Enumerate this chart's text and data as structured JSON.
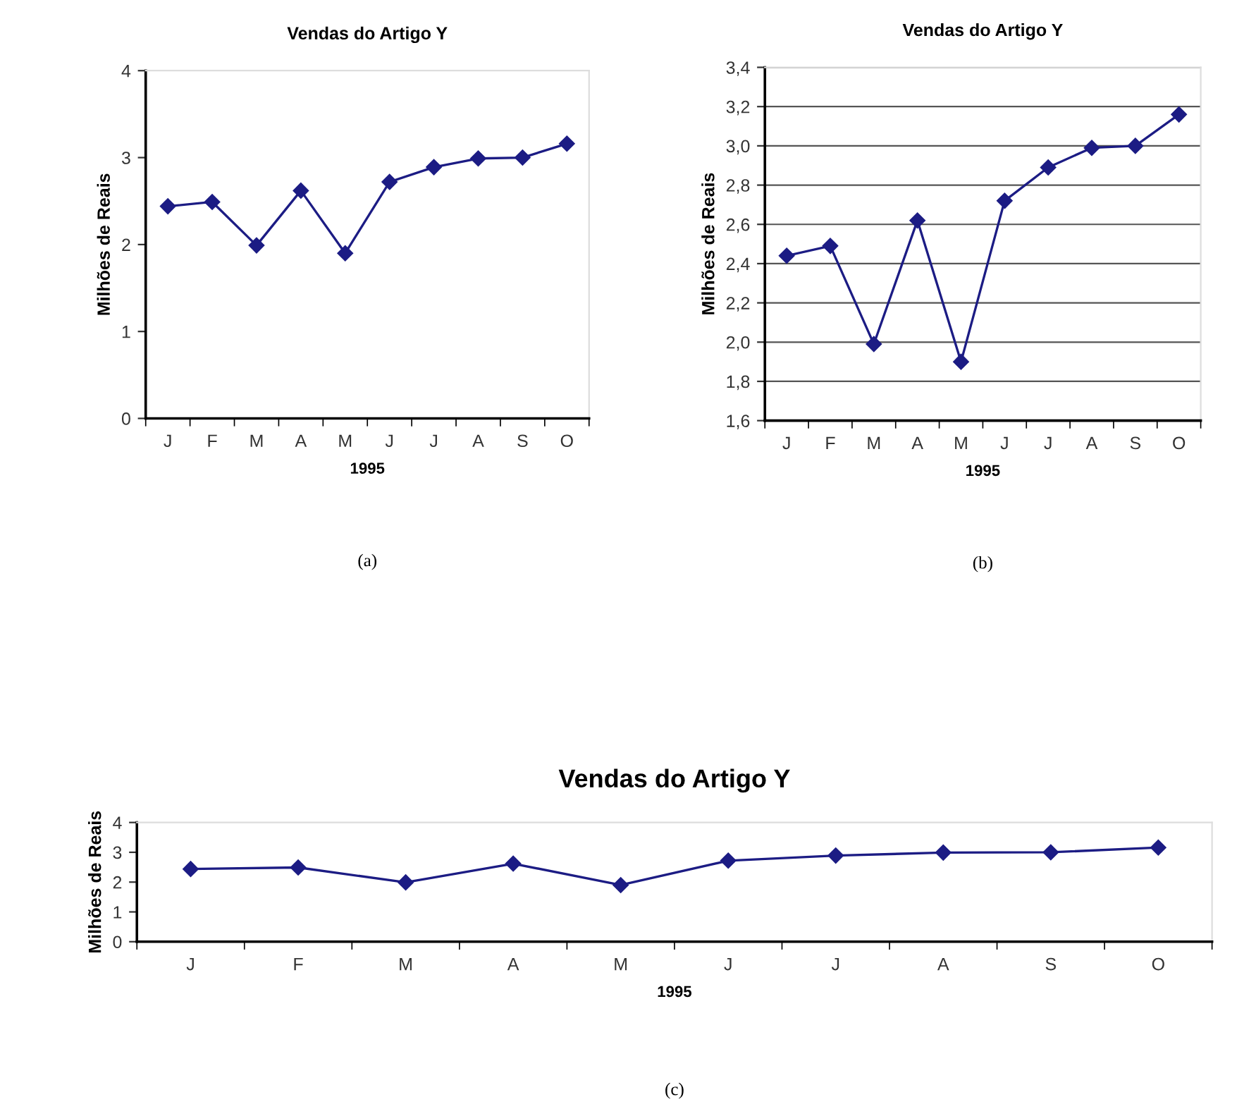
{
  "chart_data": [
    {
      "type": "line",
      "title": "Vendas do Artigo Y",
      "xlabel": "1995",
      "ylabel": "Milhões de Reais",
      "categories": [
        "J",
        "F",
        "M",
        "A",
        "M",
        "J",
        "J",
        "A",
        "S",
        "O"
      ],
      "series": [
        {
          "color": "#1c1c84",
          "values": [
            2.44,
            2.49,
            1.99,
            2.62,
            1.9,
            2.72,
            2.89,
            2.99,
            3.0,
            3.16
          ]
        }
      ],
      "ylim": [
        0,
        4
      ],
      "yticks": [
        0,
        1,
        2,
        3,
        4
      ],
      "grid": false,
      "marker": "diamond",
      "line_style": "solid",
      "annotations": [
        "(a)"
      ]
    },
    {
      "type": "line",
      "title": "Vendas do Artigo Y",
      "xlabel": "1995",
      "ylabel": "Milhões de Reais",
      "categories": [
        "J",
        "F",
        "M",
        "A",
        "M",
        "J",
        "J",
        "A",
        "S",
        "O"
      ],
      "series": [
        {
          "color": "#1c1c84",
          "values": [
            2.44,
            2.49,
            1.99,
            2.62,
            1.9,
            2.72,
            2.89,
            2.99,
            3.0,
            3.16
          ]
        }
      ],
      "ylim": [
        1.6,
        3.4
      ],
      "yticks": [
        {
          "value": 1.6,
          "label": "1,6"
        },
        {
          "value": 1.8,
          "label": "1,8"
        },
        {
          "value": 2.0,
          "label": "2,0"
        },
        {
          "value": 2.2,
          "label": "2,2"
        },
        {
          "value": 2.4,
          "label": "2,4"
        },
        {
          "value": 2.6,
          "label": "2,6"
        },
        {
          "value": 2.8,
          "label": "2,8"
        },
        {
          "value": 3.0,
          "label": "3,0"
        },
        {
          "value": 3.2,
          "label": "3,2"
        },
        {
          "value": 3.4,
          "label": "3,4"
        }
      ],
      "grid": "y",
      "marker": "diamond",
      "line_style": "solid",
      "annotations": [
        "(b)"
      ]
    },
    {
      "type": "line",
      "title": "Vendas do Artigo Y",
      "xlabel": "1995",
      "ylabel": "Milhões de Reais",
      "categories": [
        "J",
        "F",
        "M",
        "A",
        "M",
        "J",
        "J",
        "A",
        "S",
        "O"
      ],
      "series": [
        {
          "color": "#1c1c84",
          "values": [
            2.44,
            2.49,
            1.99,
            2.62,
            1.9,
            2.72,
            2.89,
            2.99,
            3.0,
            3.16
          ]
        }
      ],
      "ylim": [
        0,
        4
      ],
      "yticks": [
        0,
        1,
        2,
        3,
        4
      ],
      "grid": false,
      "marker": "diamond",
      "line_style": "solid",
      "annotations": [
        "(c)"
      ]
    }
  ]
}
